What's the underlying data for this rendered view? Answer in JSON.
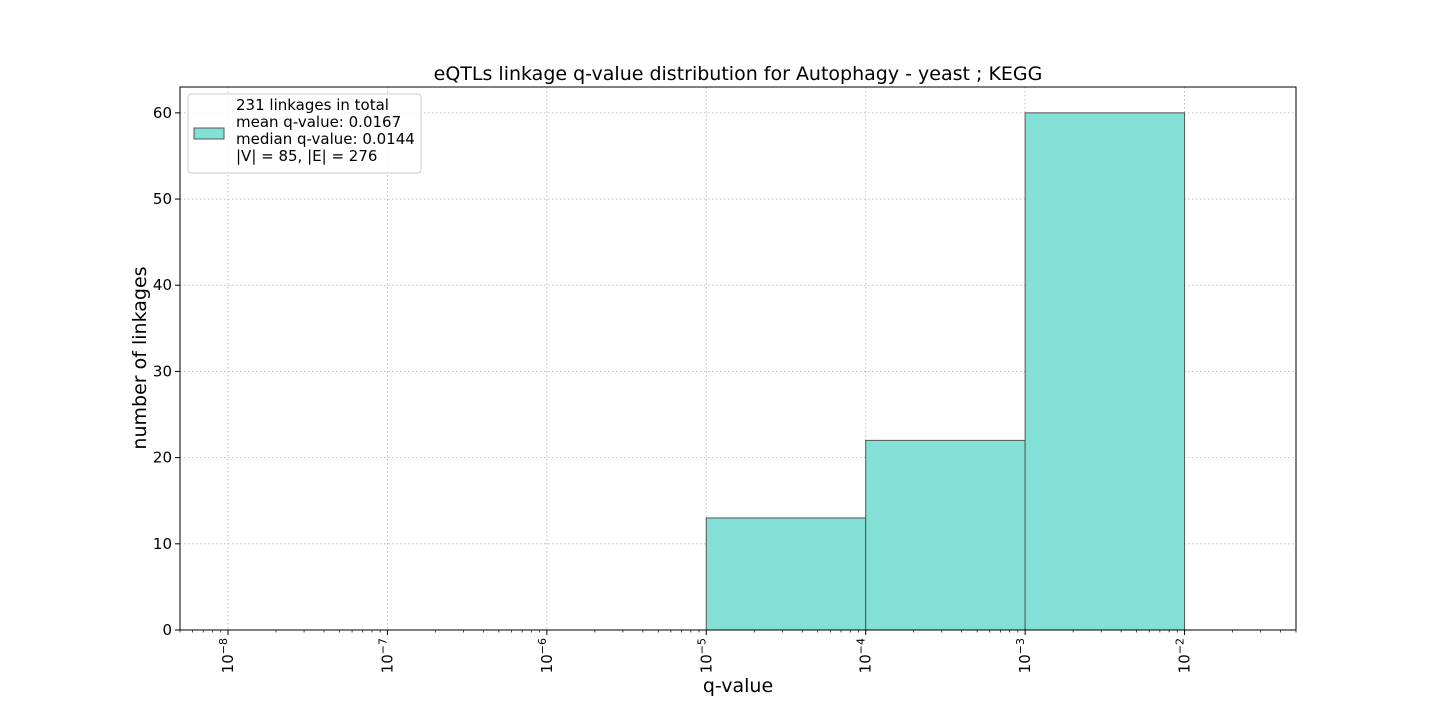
{
  "chart_data": {
    "type": "bar",
    "title": "eQTLs linkage q-value distribution for Autophagy - yeast ; KEGG",
    "xlabel": "q-value",
    "ylabel": "number of linkages",
    "x_scale": "log",
    "xlim": [
      5e-09,
      0.05
    ],
    "ylim": [
      0,
      63
    ],
    "grid": true,
    "legend_position": "top-left",
    "bar_color": "#82e0d6",
    "edge_color": "#555555",
    "bins": [
      {
        "lo": 1e-05,
        "hi": 0.0001,
        "value": 13
      },
      {
        "lo": 0.0001,
        "hi": 0.001,
        "value": 22
      },
      {
        "lo": 0.001,
        "hi": 0.01,
        "value": 60
      }
    ],
    "x_ticks": [
      {
        "base": "10",
        "exp": "−8",
        "value": 1e-08
      },
      {
        "base": "10",
        "exp": "−7",
        "value": 1e-07
      },
      {
        "base": "10",
        "exp": "−6",
        "value": 1e-06
      },
      {
        "base": "10",
        "exp": "−5",
        "value": 1e-05
      },
      {
        "base": "10",
        "exp": "−4",
        "value": 0.0001
      },
      {
        "base": "10",
        "exp": "−3",
        "value": 0.001
      },
      {
        "base": "10",
        "exp": "−2",
        "value": 0.01
      }
    ],
    "y_ticks": [
      0,
      10,
      20,
      30,
      40,
      50,
      60
    ],
    "legend": {
      "lines": [
        "231 linkages in total",
        "mean q-value: 0.0167",
        "median q-value: 0.0144",
        "|V| = 85, |E| = 276"
      ]
    }
  }
}
